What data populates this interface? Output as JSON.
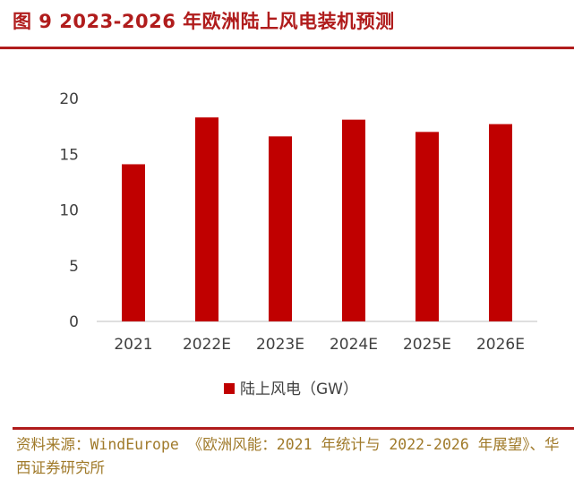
{
  "title": "图 9 2023-2026 年欧洲陆上风电装机预测",
  "source": "资料来源：WindEurope 《欧洲风能：2021 年统计与 2022-2026 年展望》、华西证券研究所",
  "colors": {
    "accent": "#b01c1c",
    "bar": "#c00000",
    "axis": "#bfbfbf",
    "tick_text": "#404040",
    "source_text": "#a07a2a"
  },
  "chart_data": {
    "type": "bar",
    "categories": [
      "2021",
      "2022E",
      "2023E",
      "2024E",
      "2025E",
      "2026E"
    ],
    "series": [
      {
        "name": "陆上风电（GW）",
        "values": [
          14.1,
          18.3,
          16.6,
          18.1,
          17.0,
          17.7
        ]
      }
    ],
    "yticks": [
      "0",
      "5",
      "10",
      "15",
      "20"
    ],
    "ylim": [
      0,
      20
    ],
    "grid": false,
    "legend": "bottom"
  }
}
